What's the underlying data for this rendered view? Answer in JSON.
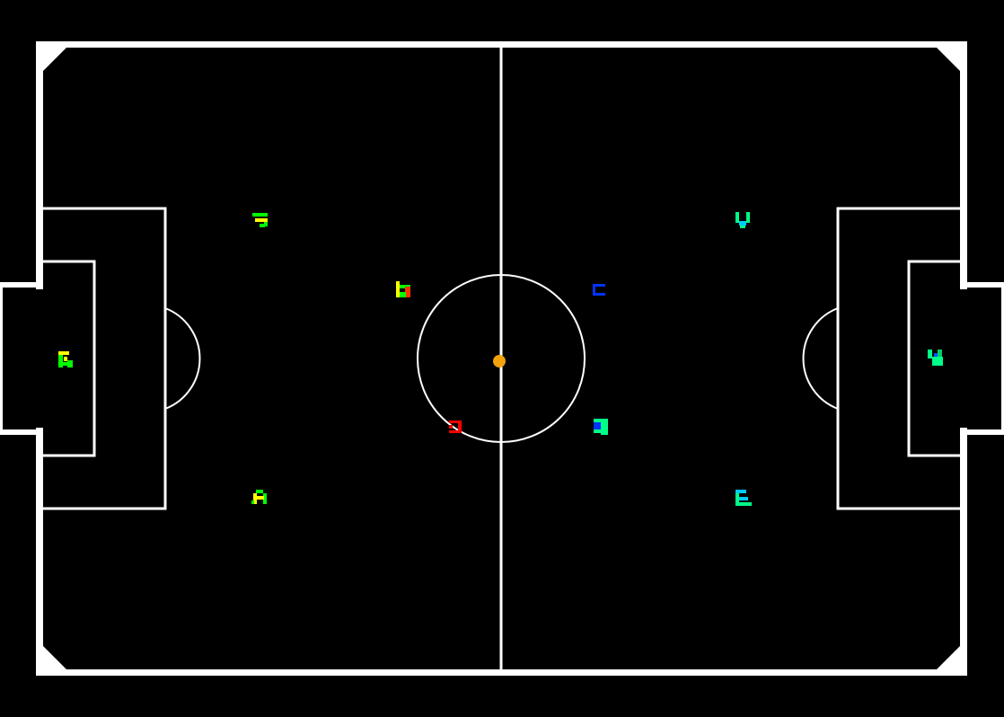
{
  "game": {
    "type": "robot-soccer-field",
    "colors": {
      "background": "#000000",
      "lines": "#ffffff",
      "ball": "#f2a20c",
      "team_left": [
        "#00ff00",
        "#ffff00",
        "#ff0000"
      ],
      "team_right": [
        "#00ff88",
        "#00ccff",
        "#0000ff"
      ]
    },
    "ball": {
      "icon": "ball-icon"
    },
    "team_left": [
      {
        "id": "left-goalkeeper",
        "icon": "robot-marker-icon"
      },
      {
        "id": "left-defender-top",
        "icon": "robot-marker-icon"
      },
      {
        "id": "left-defender-bottom",
        "icon": "robot-marker-icon"
      },
      {
        "id": "left-midfielder",
        "icon": "robot-marker-icon"
      },
      {
        "id": "left-forward",
        "icon": "robot-marker-icon"
      }
    ],
    "team_right": [
      {
        "id": "right-goalkeeper",
        "icon": "robot-marker-icon"
      },
      {
        "id": "right-defender-top",
        "icon": "robot-marker-icon"
      },
      {
        "id": "right-defender-bottom",
        "icon": "robot-marker-icon"
      },
      {
        "id": "right-midfielder",
        "icon": "robot-marker-icon"
      },
      {
        "id": "right-forward",
        "icon": "robot-marker-icon"
      }
    ]
  }
}
